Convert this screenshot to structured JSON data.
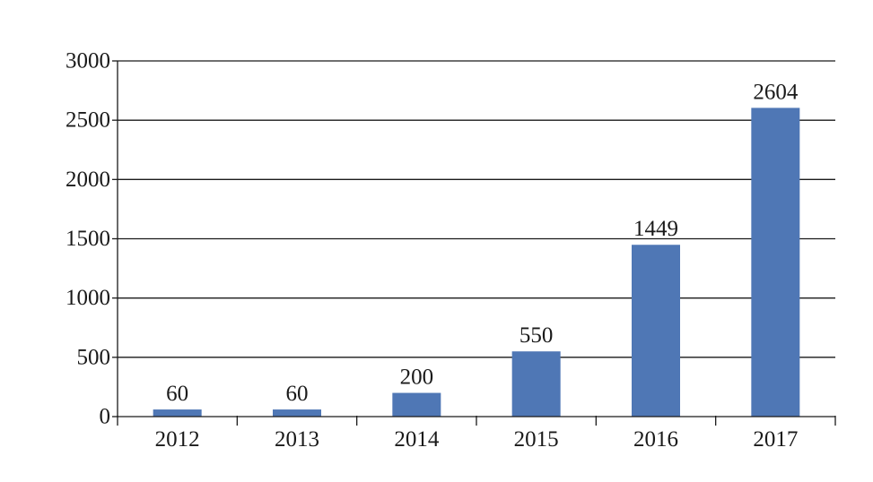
{
  "chart_data": {
    "type": "bar",
    "title": "",
    "xlabel": "",
    "ylabel": "",
    "categories": [
      "2012",
      "2013",
      "2014",
      "2015",
      "2016",
      "2017"
    ],
    "values": [
      60,
      60,
      200,
      550,
      1449,
      2604
    ],
    "value_labels": [
      "60",
      "60",
      "200",
      "550",
      "1449",
      "2604"
    ],
    "ylim": [
      0,
      3000
    ],
    "yticks": [
      0,
      500,
      1000,
      1500,
      2000,
      2500,
      3000
    ],
    "ytick_labels": [
      "0",
      "500",
      "1000",
      "1500",
      "2000",
      "2500",
      "3000"
    ],
    "grid": "horizontal",
    "legend": "none",
    "colors": {
      "bar": "#4f77b5",
      "axis": "#1a1a1a",
      "grid": "#1a1a1a"
    }
  }
}
